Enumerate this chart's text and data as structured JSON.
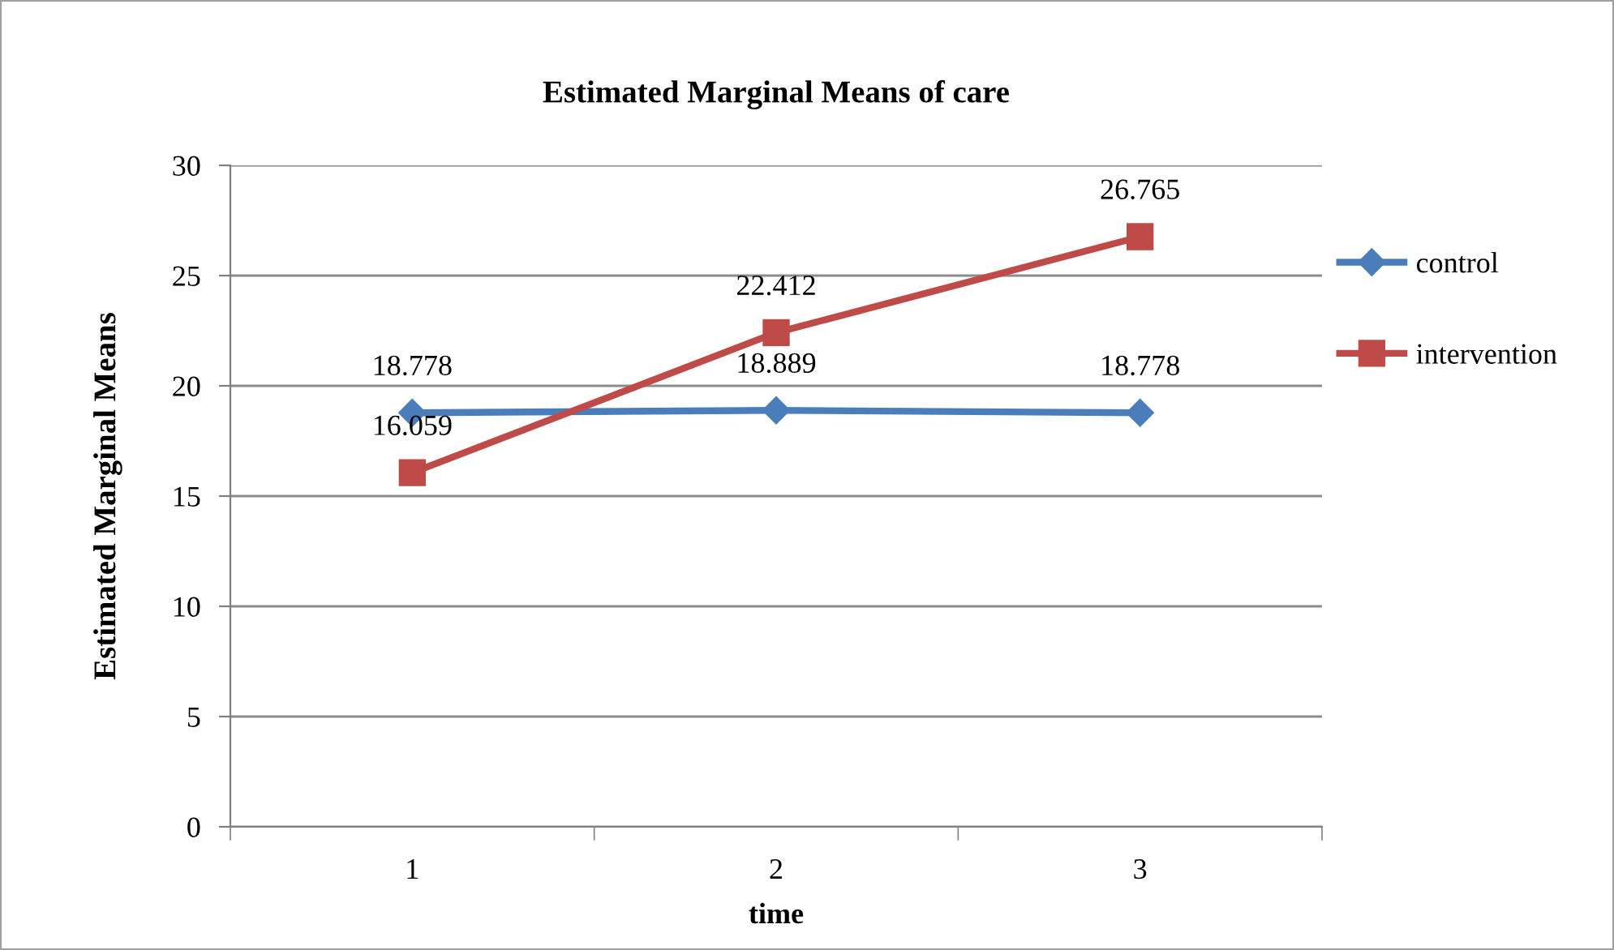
{
  "chart_data": {
    "type": "line",
    "title": "Estimated Marginal Means of care",
    "xlabel": "time",
    "ylabel": "Estimated Marginal Means",
    "categories": [
      "1",
      "2",
      "3"
    ],
    "series": [
      {
        "name": "control",
        "color": "#4a7ebb",
        "marker": "diamond",
        "values": [
          18.778,
          18.889,
          18.778
        ]
      },
      {
        "name": "intervention",
        "color": "#be4b48",
        "marker": "square",
        "values": [
          16.059,
          22.412,
          26.765
        ]
      }
    ],
    "ylim": [
      0,
      30
    ],
    "yticks": [
      0,
      5,
      10,
      15,
      20,
      25,
      30
    ],
    "grid": "y",
    "legend": "right",
    "data_labels": true
  }
}
